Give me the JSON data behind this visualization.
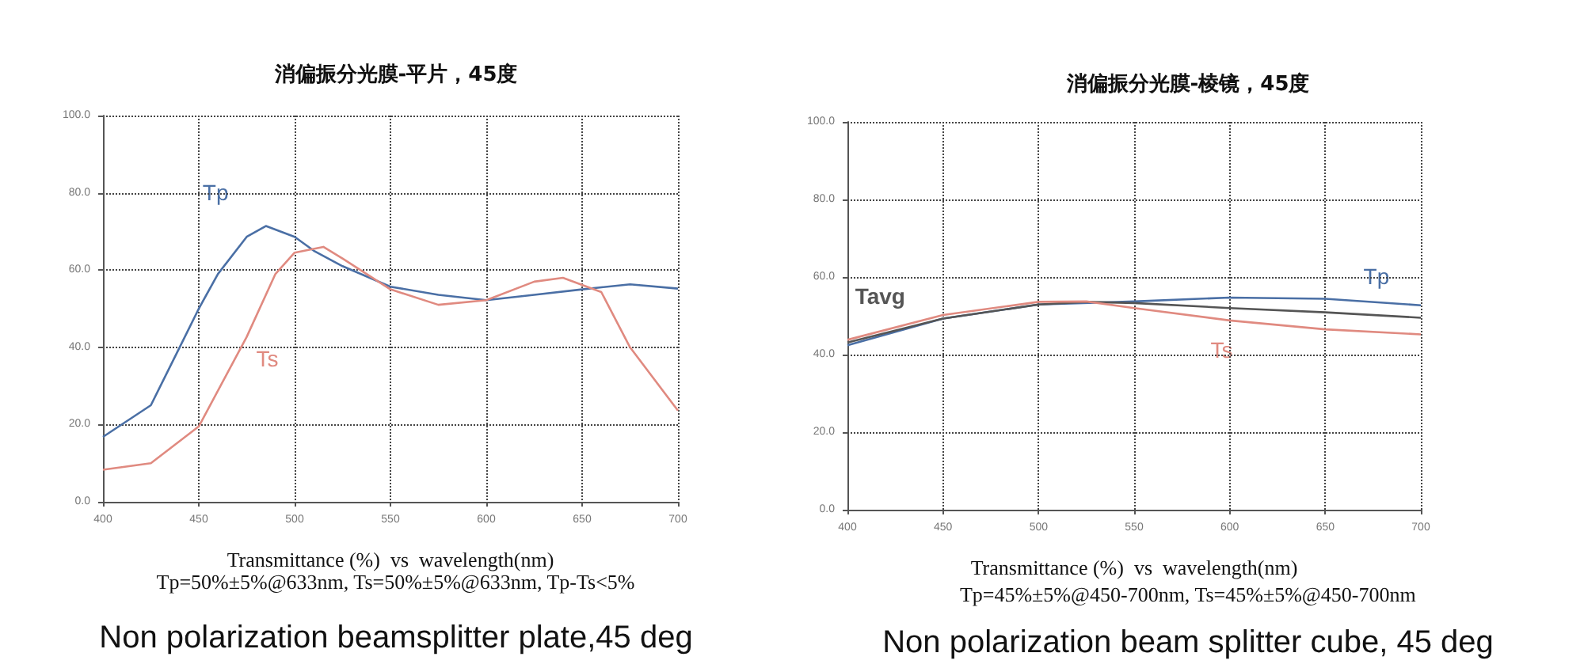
{
  "chart_data": [
    {
      "type": "line",
      "title": "消偏振分光膜-平片，45度",
      "xlabel": "Transmittance (%)  vs  wavelength(nm)",
      "annotations": [
        "Tp=50%±5%@633nm, Ts=50%±5%@633nm, Tp-Ts<5%",
        "Non polarization beamsplitter plate,45 deg"
      ],
      "xlim": [
        400,
        700
      ],
      "xticks": [
        400,
        450,
        500,
        550,
        600,
        650,
        700
      ],
      "ylim": [
        0,
        100
      ],
      "yticks": [
        {
          "value": 0,
          "label": "0.0"
        },
        {
          "value": 20,
          "label": "20.0"
        },
        {
          "value": 40,
          "label": "40.0"
        },
        {
          "value": 60,
          "label": "60.0"
        },
        {
          "value": 80,
          "label": "80.0"
        },
        {
          "value": 100,
          "label": "100.0"
        }
      ],
      "grid": true,
      "marker": "none",
      "line_style": "solid",
      "legend": false,
      "series": [
        {
          "name": "Tp",
          "color": "#4a6fa5",
          "x": [
            400,
            425,
            440,
            450,
            460,
            475,
            485,
            500,
            510,
            525,
            550,
            575,
            600,
            625,
            650,
            675,
            700
          ],
          "values": [
            16.8,
            25,
            40,
            50,
            59,
            68.6,
            71.4,
            68.6,
            65,
            61,
            55.7,
            53.6,
            52.2,
            53.6,
            55,
            56.3,
            55.2
          ]
        },
        {
          "name": "Ts",
          "color": "#e08a80",
          "x": [
            400,
            425,
            450,
            475,
            490,
            500,
            515,
            525,
            550,
            575,
            600,
            625,
            640,
            660,
            675,
            700
          ],
          "values": [
            8.3,
            10,
            19.5,
            42.7,
            59,
            64.5,
            66,
            63,
            55,
            51,
            52.2,
            57,
            58,
            54.3,
            40,
            23.6
          ]
        }
      ]
    },
    {
      "type": "line",
      "title": "消偏振分光膜-棱镜，45度",
      "xlabel": "Transmittance (%)  vs  wavelength(nm)",
      "annotations": [
        "Tp=45%±5%@450-700nm, Ts=45%±5%@450-700nm",
        "Non polarization beam splitter cube, 45 deg"
      ],
      "xlim": [
        400,
        700
      ],
      "xticks": [
        400,
        450,
        500,
        550,
        600,
        650,
        700
      ],
      "ylim": [
        0,
        100
      ],
      "yticks": [
        {
          "value": 0,
          "label": "0.0"
        },
        {
          "value": 20,
          "label": "20.0"
        },
        {
          "value": 40,
          "label": "40.0"
        },
        {
          "value": 60,
          "label": "60.0"
        },
        {
          "value": 80,
          "label": "80.0"
        },
        {
          "value": 100,
          "label": "100.0"
        }
      ],
      "grid": true,
      "marker": "none",
      "line_style": "solid",
      "legend": false,
      "series": [
        {
          "name": "Tp",
          "color": "#4a6fa5",
          "x": [
            400,
            450,
            500,
            550,
            600,
            650,
            700
          ],
          "values": [
            42.4,
            49.3,
            52.9,
            53.7,
            54.7,
            54.4,
            52.7
          ]
        },
        {
          "name": "Tavg",
          "color": "#555555",
          "x": [
            400,
            450,
            500,
            525,
            550,
            600,
            650,
            700
          ],
          "values": [
            43.1,
            49.3,
            52.9,
            53.6,
            53.3,
            52,
            50.9,
            49.5
          ]
        },
        {
          "name": "Ts",
          "color": "#e08a80",
          "x": [
            400,
            450,
            500,
            525,
            550,
            600,
            650,
            700
          ],
          "values": [
            43.8,
            50.2,
            53.6,
            53.7,
            52,
            48.8,
            46.5,
            45.2
          ]
        }
      ]
    }
  ]
}
